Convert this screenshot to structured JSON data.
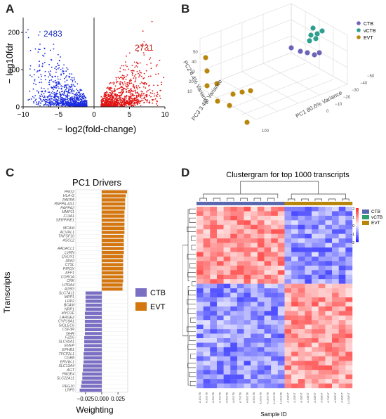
{
  "panels": {
    "A": "A",
    "B": "B",
    "C": "C",
    "D": "D"
  },
  "chart_data": [
    {
      "panel": "A",
      "type": "scatter",
      "xlabel": "− log2(fold-change)",
      "ylabel": "− log10fdr",
      "xticks": [
        "−10",
        "−5",
        "0",
        "5",
        "10"
      ],
      "yticks": [
        "0",
        "100",
        "200"
      ],
      "xlim": [
        -10,
        10
      ],
      "ylim": [
        0,
        240
      ],
      "annotations": [
        {
          "text": "2483",
          "color": "#1f2fbf"
        },
        {
          "text": "2731",
          "color": "#c0201a"
        }
      ],
      "series": [
        {
          "color": "#1a2be0",
          "count_label": "2483"
        },
        {
          "color": "#e01414",
          "count_label": "2731"
        }
      ]
    },
    {
      "panel": "B",
      "type": "scatter",
      "axis_labels": [
        "PC1 80.6% Variance",
        "PC2 4.4% Variance",
        "PC3 3.4% Variance"
      ],
      "tick_labels": [
        "50",
        "40",
        "30",
        "20",
        "10",
        "0",
        "−10",
        "−20",
        "−30",
        "−40",
        "−50",
        "100",
        "−50",
        "−40",
        "−30",
        "−20",
        "−10",
        "0",
        "10",
        "20",
        "30",
        "40",
        "50"
      ],
      "legend": [
        {
          "name": "CTB",
          "color": "#6b64b8"
        },
        {
          "name": "vCTB",
          "color": "#2e9f8e"
        },
        {
          "name": "EVT",
          "color": "#b8860b"
        }
      ],
      "legend_position": "top-right"
    },
    {
      "panel": "C",
      "type": "bar",
      "title": "PC1 Drivers",
      "xlabel": "Weighting",
      "ylabel": "Transcripts",
      "xticks": [
        "−0.025",
        "0.000",
        "0.025"
      ],
      "xlim": [
        -0.04,
        0.04
      ],
      "legend": [
        {
          "name": "CTB",
          "color": "#7b6fc4"
        },
        {
          "name": "EVT",
          "color": "#d4760f"
        }
      ],
      "categories": [
        "PRG2",
        "HLA-G",
        "PAPPA",
        "PAPPA-AS1",
        "PAPPA2",
        "MMP11",
        "F13A1",
        "SERPINE1",
        "",
        "MCAM",
        "ACVRL1",
        "TNFSF10",
        "ASCL2",
        "",
        "AADACL1",
        "LVRN",
        "QSOX1",
        "JAM2",
        "CTSL",
        "PIPOX",
        "AFF1",
        "COROA",
        "CRK",
        "HTRA4",
        "A1BG",
        "SLC7A11",
        "MPP1",
        "LRP2",
        "BCAM",
        "NRP1",
        "MYO1E",
        "LARGE2",
        "CYP19A1",
        "SIGLEC6",
        "CSF3R",
        "GHR",
        "FZD5",
        "SLC40A1",
        "EVEP",
        "EPHB1",
        "TFCP2L1",
        "CGB8",
        "ERVW-1",
        "SLC13A4",
        "AGT",
        "PAGE4",
        "SLC22A11",
        "",
        "PEG10",
        "LRP5"
      ],
      "values": [
        0.039,
        0.037,
        0.036,
        0.036,
        0.036,
        0.035,
        0.035,
        0.035,
        0.035,
        0.035,
        0.035,
        0.034,
        0.034,
        0.034,
        0.034,
        0.034,
        0.033,
        0.033,
        0.033,
        0.033,
        0.033,
        0.033,
        0.033,
        0.032,
        0.032,
        -0.025,
        -0.025,
        -0.025,
        -0.025,
        -0.025,
        -0.026,
        -0.026,
        -0.026,
        -0.026,
        -0.026,
        -0.026,
        -0.027,
        -0.027,
        -0.027,
        -0.027,
        -0.028,
        -0.028,
        -0.028,
        -0.029,
        -0.029,
        -0.03,
        -0.03,
        -0.031,
        -0.032,
        -0.034
      ]
    },
    {
      "panel": "D",
      "type": "heatmap",
      "title": "Clustergram for top 1000 transcripts",
      "xlabel": "Sample ID",
      "colorbar_ticks": [
        "2",
        "1",
        "0",
        "-1",
        "-2"
      ],
      "legend": [
        {
          "name": "CTB",
          "color": "#5a68b0"
        },
        {
          "name": "vCTB",
          "color": "#2e9f6e"
        },
        {
          "name": "EVT",
          "color": "#b8860b"
        }
      ],
      "sample_ids": [
        "A.1SCTB",
        "A.2SCTB",
        "A.3SCTB",
        "A.4SCTB",
        "A.5SCTB",
        "A.6SCTB",
        "A.7SCTB",
        "A.8SCTB",
        "A.9SCTB",
        "A.10SCTB",
        "A.11SCTB",
        "A.12SCTB",
        "A.13SCTB",
        "A.1SEVT",
        "A.2SEVT",
        "A.3SEVT",
        "A.4SEVT",
        "A.5SEVT",
        "A.6SEVT",
        "A.7SEVT",
        "A.8SEVT",
        "A.9SEVT",
        "A.10SEVT"
      ]
    }
  ]
}
